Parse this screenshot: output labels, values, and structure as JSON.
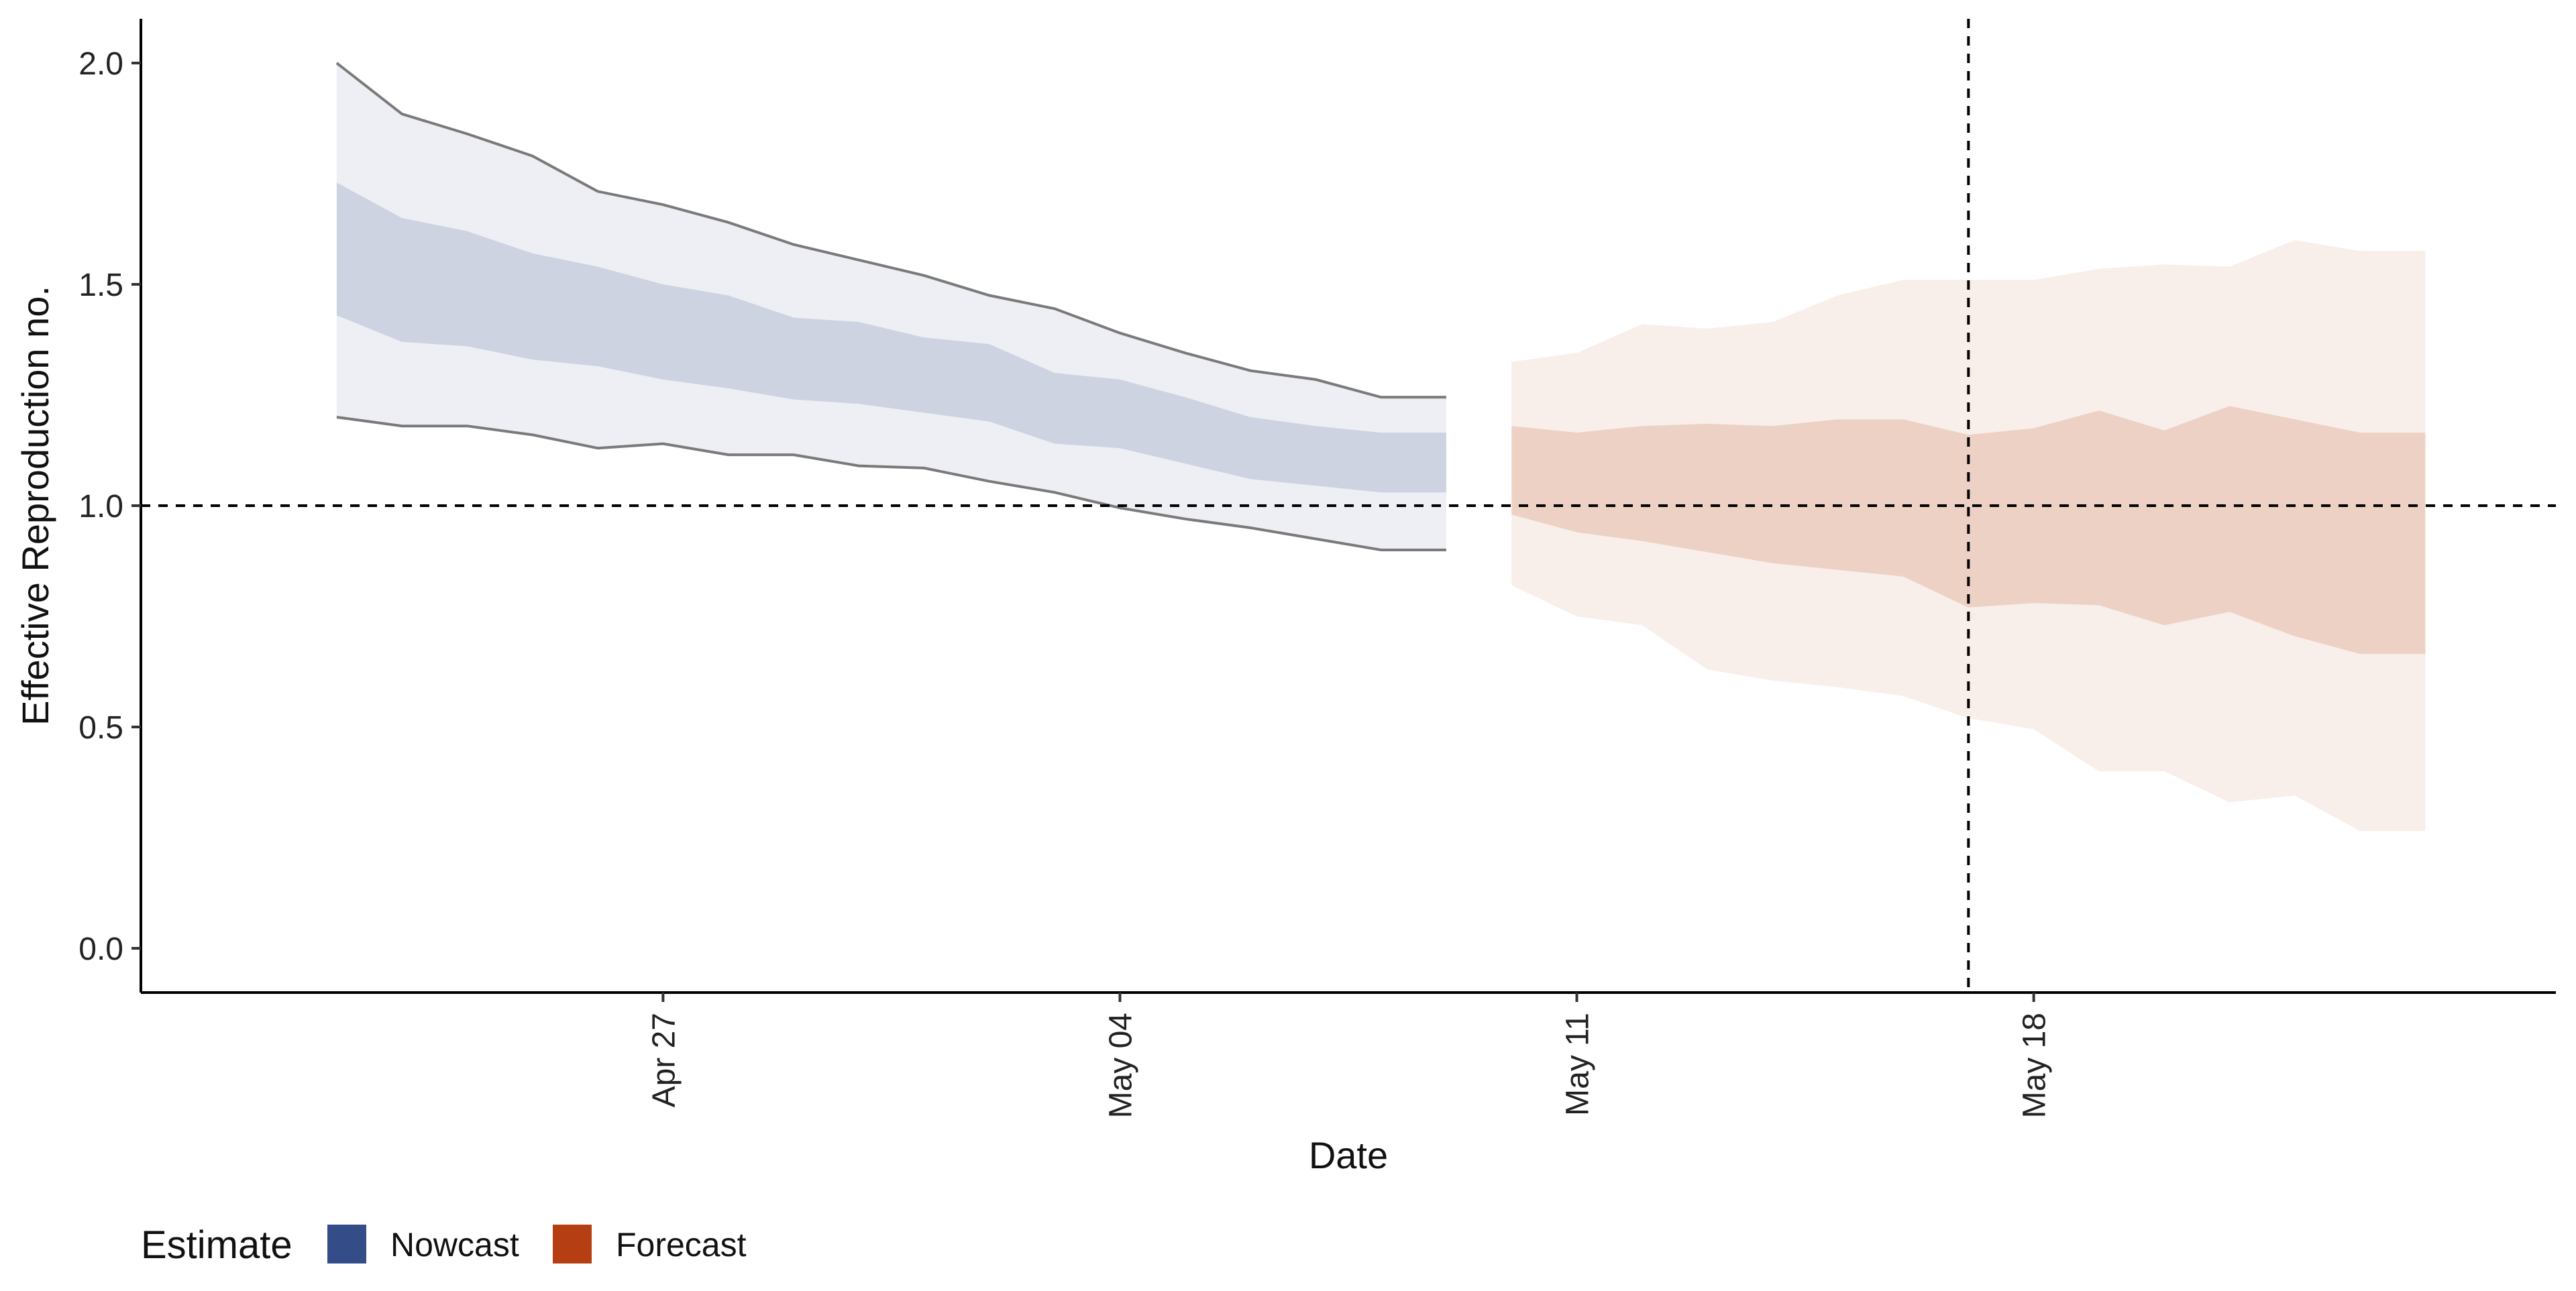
{
  "chart_data": {
    "type": "area",
    "xlabel": "Date",
    "ylabel": "Effective Reproduction no.",
    "ylim": [
      -0.1,
      2.1
    ],
    "xlim": [
      "2020-04-19",
      "2020-05-26"
    ],
    "y_ticks": [
      0.0,
      0.5,
      1.0,
      1.5,
      2.0
    ],
    "y_tick_labels": [
      "0.0",
      "0.5",
      "1.0",
      "1.5",
      "2.0"
    ],
    "x_ticks": [
      "2020-04-27",
      "2020-05-04",
      "2020-05-11",
      "2020-05-18"
    ],
    "x_tick_labels": [
      "Apr 27",
      "May 04",
      "May 11",
      "May 18"
    ],
    "reference_lines": {
      "horizontal_y": 1.0,
      "vertical_x": "2020-05-17"
    },
    "grid": false,
    "legend": {
      "position": "bottom-left",
      "title": "Estimate",
      "entries": [
        {
          "label": "Nowcast",
          "color": "#344d89"
        },
        {
          "label": "Forecast",
          "color": "#b53f12"
        }
      ]
    },
    "series": [
      {
        "name": "Nowcast",
        "color": "#344d89",
        "x": [
          "2020-04-22",
          "2020-04-23",
          "2020-04-24",
          "2020-04-25",
          "2020-04-26",
          "2020-04-27",
          "2020-04-28",
          "2020-04-29",
          "2020-04-30",
          "2020-05-01",
          "2020-05-02",
          "2020-05-03",
          "2020-05-04",
          "2020-05-05",
          "2020-05-06",
          "2020-05-07",
          "2020-05-08",
          "2020-05-09"
        ],
        "lower_90": [
          1.2,
          1.18,
          1.18,
          1.16,
          1.13,
          1.14,
          1.115,
          1.115,
          1.09,
          1.085,
          1.055,
          1.03,
          0.995,
          0.97,
          0.95,
          0.925,
          0.9,
          0.9
        ],
        "lower_50": [
          1.43,
          1.37,
          1.36,
          1.33,
          1.315,
          1.285,
          1.265,
          1.24,
          1.23,
          1.21,
          1.19,
          1.14,
          1.13,
          1.095,
          1.06,
          1.045,
          1.03,
          1.03
        ],
        "upper_50": [
          1.73,
          1.65,
          1.62,
          1.57,
          1.54,
          1.5,
          1.475,
          1.425,
          1.415,
          1.38,
          1.365,
          1.3,
          1.285,
          1.245,
          1.2,
          1.18,
          1.165,
          1.165
        ],
        "upper_90": [
          2.0,
          1.885,
          1.84,
          1.79,
          1.71,
          1.68,
          1.64,
          1.59,
          1.555,
          1.52,
          1.475,
          1.445,
          1.39,
          1.345,
          1.305,
          1.285,
          1.245,
          1.245
        ]
      },
      {
        "name": "Forecast",
        "color": "#b53f12",
        "x": [
          "2020-05-10",
          "2020-05-11",
          "2020-05-12",
          "2020-05-13",
          "2020-05-14",
          "2020-05-15",
          "2020-05-16",
          "2020-05-17",
          "2020-05-18",
          "2020-05-19",
          "2020-05-20",
          "2020-05-21",
          "2020-05-22",
          "2020-05-23",
          "2020-05-24"
        ],
        "lower_90": [
          0.82,
          0.75,
          0.73,
          0.63,
          0.605,
          0.59,
          0.57,
          0.52,
          0.495,
          0.4,
          0.4,
          0.33,
          0.345,
          0.265,
          0.265
        ],
        "lower_50": [
          0.98,
          0.94,
          0.92,
          0.895,
          0.87,
          0.855,
          0.84,
          0.77,
          0.78,
          0.775,
          0.73,
          0.76,
          0.705,
          0.665,
          0.665
        ],
        "upper_50": [
          1.18,
          1.165,
          1.18,
          1.185,
          1.18,
          1.195,
          1.195,
          1.16,
          1.175,
          1.215,
          1.17,
          1.225,
          1.195,
          1.165,
          1.165
        ],
        "upper_90": [
          1.325,
          1.345,
          1.41,
          1.4,
          1.415,
          1.475,
          1.51,
          1.51,
          1.51,
          1.535,
          1.545,
          1.54,
          1.6,
          1.575,
          1.575
        ]
      }
    ]
  }
}
